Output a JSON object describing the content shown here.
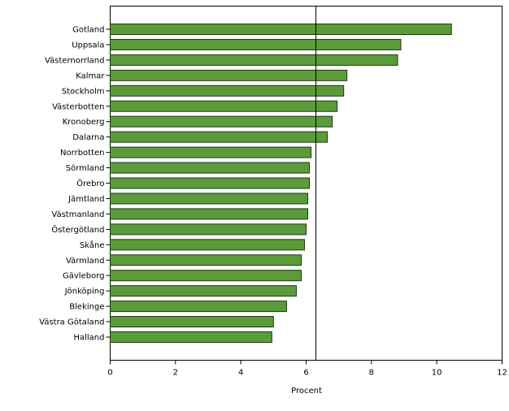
{
  "chart_data": {
    "type": "bar",
    "orientation": "horizontal",
    "categories": [
      "Gotland",
      "Uppsala",
      "Västernorrland",
      "Kalmar",
      "Stockholm",
      "Västerbotten",
      "Kronoberg",
      "Dalarna",
      "Norrbotten",
      "Sörmland",
      "Örebro",
      "Jämtland",
      "Västmanland",
      "Östergötland",
      "Skåne",
      "Värmland",
      "Gävleborg",
      "Jönköping",
      "Blekinge",
      "Västra Götaland",
      "Halland"
    ],
    "values": [
      10.45,
      8.9,
      8.8,
      7.25,
      7.15,
      6.95,
      6.8,
      6.65,
      6.15,
      6.1,
      6.1,
      6.05,
      6.05,
      6.0,
      5.95,
      5.85,
      5.85,
      5.7,
      5.4,
      5.0,
      4.95
    ],
    "reference_line": 6.3,
    "xlim": [
      0,
      12
    ],
    "xticks": [
      "0",
      "2",
      "4",
      "6",
      "8",
      "10",
      "12"
    ],
    "xlabel": "Procent",
    "ylabel": "",
    "title": "",
    "grid": false,
    "colors": {
      "bar_fill": "#5b9b3a",
      "bar_stroke": "#1e3a12",
      "axis": "#000000"
    }
  }
}
